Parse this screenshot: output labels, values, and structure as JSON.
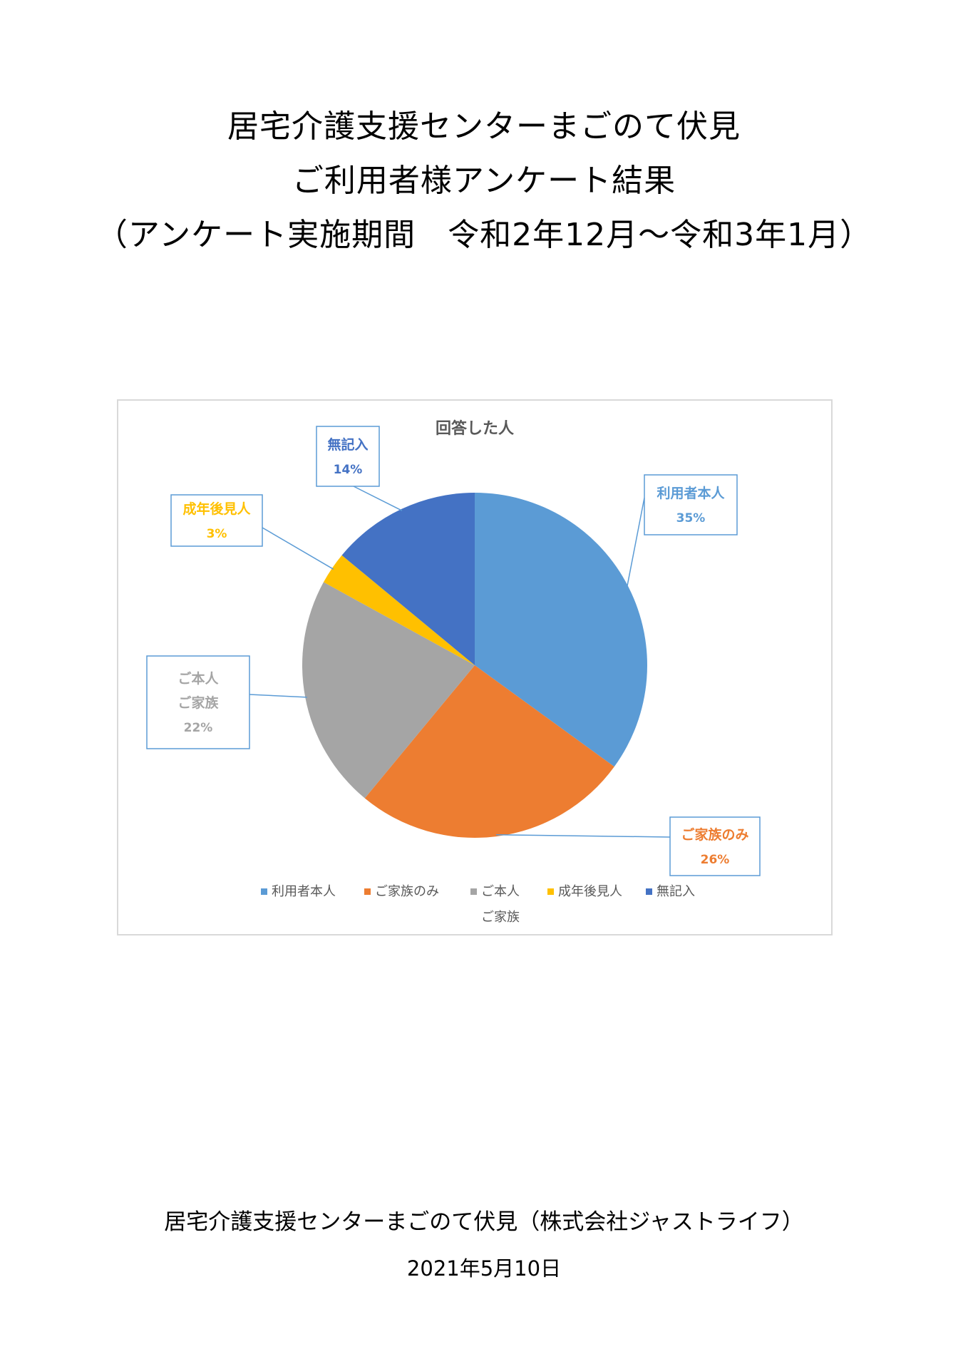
{
  "title": {
    "line1": "居宅介護支援センターまごのて伏見",
    "line2": "ご利用者様アンケート結果",
    "line3": "（アンケート実施期間　令和2年12月～令和3年1月）"
  },
  "chart_data": {
    "type": "pie",
    "title": "回答した人",
    "categories": [
      "利用者本人",
      "ご家族のみ",
      "ご本人ご家族",
      "成年後見人",
      "無記入"
    ],
    "values": [
      35,
      26,
      22,
      3,
      14
    ],
    "unit": "%",
    "colors": [
      "#5B9BD5",
      "#ED7D31",
      "#A5A5A5",
      "#FFC000",
      "#4472C4"
    ],
    "data_labels": [
      {
        "lines": [
          "利用者本人"
        ],
        "pct": "35%"
      },
      {
        "lines": [
          "ご家族のみ"
        ],
        "pct": "26%"
      },
      {
        "lines": [
          "ご本人",
          "ご家族"
        ],
        "pct": "22%"
      },
      {
        "lines": [
          "成年後見人"
        ],
        "pct": "3%"
      },
      {
        "lines": [
          "無記入"
        ],
        "pct": "14%"
      }
    ],
    "legend": {
      "position": "bottom",
      "items": [
        "利用者本人",
        "ご家族のみ",
        "ご本人",
        "成年後見人",
        "無記入"
      ],
      "second_line": "ご家族"
    },
    "callout_border_color": "#5B9BD5"
  },
  "footer": {
    "organization": "居宅介護支援センターまごのて伏見（株式会社ジャストライフ）",
    "date": "2021年5月10日"
  }
}
